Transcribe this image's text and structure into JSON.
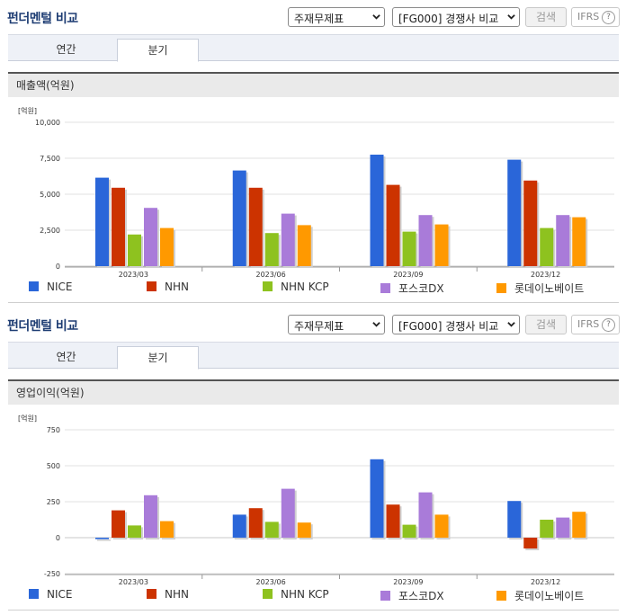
{
  "header": {
    "title": "펀더멘털 비교",
    "select_main": "주재무제표",
    "select_peer": "[FG000] 경쟁사 비교",
    "search_label": "검색",
    "ifrs_label": "IFRS",
    "help_label": "?"
  },
  "tabs": [
    {
      "label": "연간"
    },
    {
      "label": "분기"
    }
  ],
  "active_tab": "분기",
  "colors": {
    "NICE": "#2a66d9",
    "NHN": "#cc3300",
    "NHN KCP": "#8ec21f",
    "포스코DX": "#a97bd9",
    "롯데이노베이트": "#ff9900"
  },
  "legend": [
    {
      "name": "NICE",
      "color": "#2a66d9"
    },
    {
      "name": "NHN",
      "color": "#cc3300"
    },
    {
      "name": "NHN KCP",
      "color": "#8ec21f"
    },
    {
      "name": "포스코DX",
      "color": "#a97bd9"
    },
    {
      "name": "롯데이노베이트",
      "color": "#ff9900"
    }
  ],
  "chart_data": [
    {
      "type": "bar",
      "title": "매출액(억원)",
      "unit_label": "[억원]",
      "categories": [
        "2023/03",
        "2023/06",
        "2023/09",
        "2023/12"
      ],
      "ylim": [
        0,
        10000
      ],
      "yticks": [
        0,
        2500,
        5000,
        7500,
        10000
      ],
      "ytick_labels": [
        "0",
        "2,500",
        "5,000",
        "7,500",
        "10,000"
      ],
      "grid": true,
      "legend_position": "bottom",
      "series": [
        {
          "name": "NICE",
          "values": [
            6150,
            6650,
            7750,
            7400
          ]
        },
        {
          "name": "NHN",
          "values": [
            5450,
            5450,
            5650,
            5950
          ]
        },
        {
          "name": "NHN KCP",
          "values": [
            2200,
            2300,
            2400,
            2650
          ]
        },
        {
          "name": "포스코DX",
          "values": [
            4050,
            3650,
            3550,
            3550
          ]
        },
        {
          "name": "롯데이노베이트",
          "values": [
            2650,
            2850,
            2900,
            3400
          ]
        }
      ]
    },
    {
      "type": "bar",
      "title": "영업이익(억원)",
      "unit_label": "[억원]",
      "categories": [
        "2023/03",
        "2023/06",
        "2023/09",
        "2023/12"
      ],
      "ylim": [
        -250,
        750
      ],
      "yticks": [
        -250,
        0,
        250,
        500,
        750
      ],
      "ytick_labels": [
        "-250",
        "0",
        "250",
        "500",
        "750"
      ],
      "grid": true,
      "legend_position": "bottom",
      "series": [
        {
          "name": "NICE",
          "values": [
            -10,
            160,
            545,
            255
          ]
        },
        {
          "name": "NHN",
          "values": [
            190,
            205,
            230,
            -75
          ]
        },
        {
          "name": "NHN KCP",
          "values": [
            85,
            110,
            90,
            125
          ]
        },
        {
          "name": "포스코DX",
          "values": [
            295,
            340,
            315,
            140
          ]
        },
        {
          "name": "롯데이노베이트",
          "values": [
            115,
            105,
            160,
            180
          ]
        }
      ]
    }
  ]
}
